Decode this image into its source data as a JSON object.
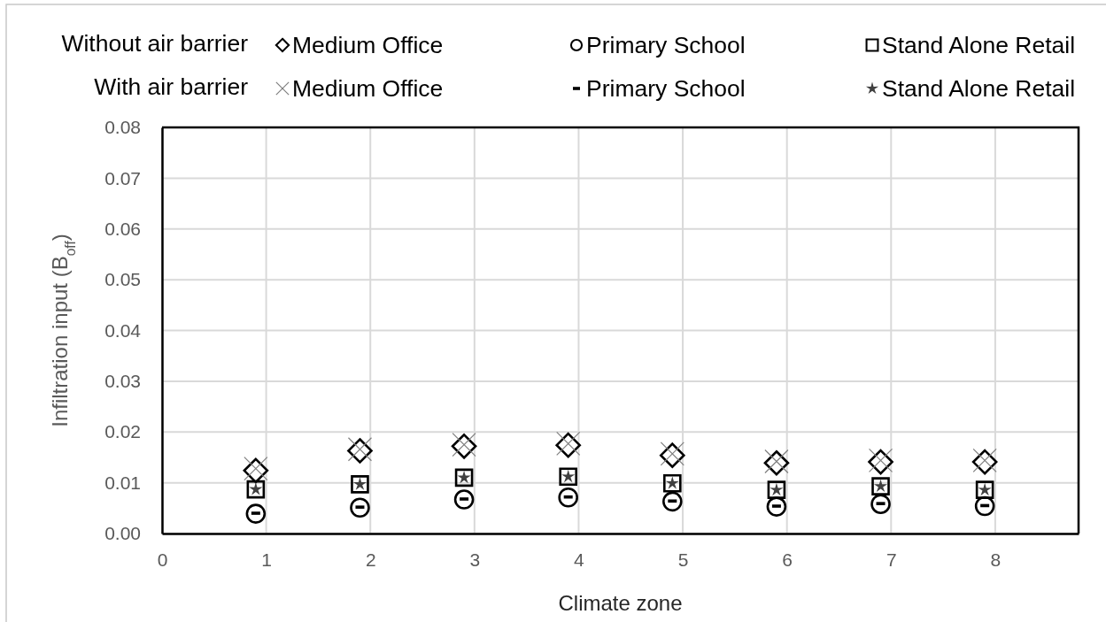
{
  "chart_data": {
    "type": "scatter",
    "xlabel": "Climate zone",
    "ylabel": "Infiltration input (B$_{off}$)",
    "xlim": [
      0,
      8.8
    ],
    "ylim": [
      0,
      0.08
    ],
    "xticks": [
      0,
      1,
      2,
      3,
      4,
      5,
      6,
      7,
      8
    ],
    "yticks": [
      {
        "value": 0,
        "label": "0.00"
      },
      {
        "value": 0.01,
        "label": "0.01"
      },
      {
        "value": 0.02,
        "label": "0.02"
      },
      {
        "value": 0.03,
        "label": "0.03"
      },
      {
        "value": 0.04,
        "label": "0.04"
      },
      {
        "value": 0.05,
        "label": "0.05"
      },
      {
        "value": 0.06,
        "label": "0.06"
      },
      {
        "value": 0.07,
        "label": "0.07"
      },
      {
        "value": 0.08,
        "label": "0.08"
      }
    ],
    "grid": true,
    "legend": "top",
    "annotations": [
      "Without air barrier",
      "With air barrier"
    ],
    "x": [
      0.9,
      1.9,
      2.9,
      3.9,
      4.9,
      5.9,
      6.9,
      7.9
    ],
    "series": [
      {
        "name": "Medium Office",
        "color": "#000000",
        "marker": "diamond",
        "values": [
          0.0124,
          0.0163,
          0.0172,
          0.0174,
          0.0154,
          0.0139,
          0.0141,
          0.0141
        ]
      },
      {
        "name": "Primary School",
        "color": "#000000",
        "marker": "circle",
        "values": [
          0.0039,
          0.0051,
          0.0067,
          0.0071,
          0.0063,
          0.0053,
          0.0058,
          0.0054
        ]
      },
      {
        "name": "Stand Alone Retail",
        "color": "#000000",
        "marker": "square",
        "values": [
          0.0087,
          0.0097,
          0.011,
          0.0112,
          0.0099,
          0.0086,
          0.0093,
          0.0086
        ]
      },
      {
        "name": "Medium Office",
        "color": "#7f7f7f",
        "marker": "cross",
        "values": [
          0.0128,
          0.0166,
          0.0175,
          0.0177,
          0.0157,
          0.0142,
          0.0144,
          0.0144
        ]
      },
      {
        "name": "Primary School",
        "color": "#000000",
        "values": [
          0.004,
          0.0052,
          0.0068,
          0.0072,
          0.0064,
          0.0054,
          0.0059,
          0.0055
        ]
      },
      {
        "name": "Stand Alone Retail",
        "color": "#404040",
        "marker": "star",
        "values": [
          0.0087,
          0.0097,
          0.011,
          0.0112,
          0.0099,
          0.0086,
          0.0093,
          0.0086
        ]
      }
    ]
  }
}
